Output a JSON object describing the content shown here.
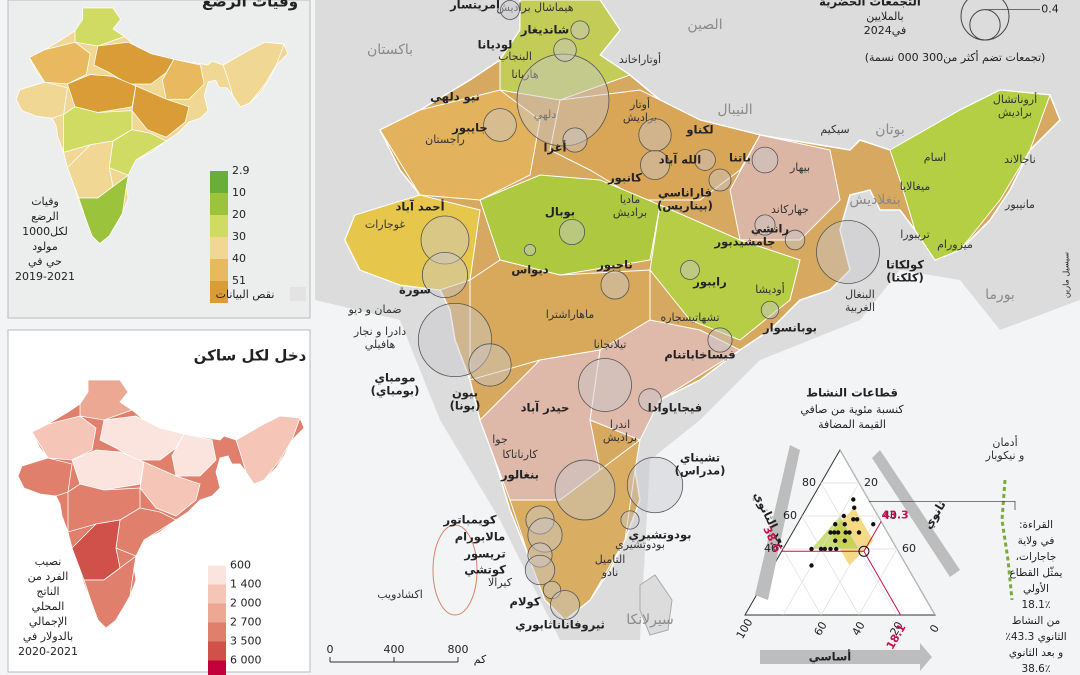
{
  "main_map": {
    "urban_legend": {
      "title": "التجمعات الحضرية",
      "subtitle": [
        "بالملايين",
        "في2024"
      ],
      "sizes": [
        1,
        0.4
      ],
      "note": "(تجمعات تضم أكثر من300 000 نسمة)"
    },
    "countries": [
      "باكستان",
      "الصين",
      "النيبال",
      "بوتان",
      "بنغلاديش",
      "بورما",
      "سيرلانكا"
    ],
    "seas": [
      [
        "أدمان",
        "و نيكوبار"
      ],
      [
        "اكشادويب"
      ]
    ],
    "states": [
      [
        "هيماشال براديش"
      ],
      [
        "البنجاب"
      ],
      [
        "هاريانا"
      ],
      [
        "أوتاراخاند"
      ],
      [
        "أوتار",
        "براديش"
      ],
      [
        "راجستان"
      ],
      [
        "بيهار"
      ],
      [
        "جهاركاند"
      ],
      [
        "البنغال",
        "الغربية"
      ],
      [
        "أوديشا"
      ],
      [
        "تشهاتيسجاره"
      ],
      [
        "ماديا",
        "براديش"
      ],
      [
        "غوجارات"
      ],
      [
        "ماهاراشترا"
      ],
      [
        "تيلانجانا"
      ],
      [
        "اندرا",
        "براديش"
      ],
      [
        "جوا"
      ],
      [
        "كارناتاكا"
      ],
      [
        "التاميل",
        "نادو"
      ],
      [
        "كيرالا"
      ],
      [
        "سيكيم"
      ],
      [
        "أروناتشال",
        "براديش"
      ],
      [
        "اسام"
      ],
      [
        "ميغالايا"
      ],
      [
        "ناجالاند"
      ],
      [
        "مانيبور"
      ],
      [
        "ميزورام"
      ],
      [
        "تريبورا"
      ],
      [
        "ضمان و ديو"
      ],
      [
        "دادرا و نجار",
        "هافيلي"
      ],
      [
        "بودوتشيري"
      ],
      [
        "دلهي"
      ]
    ],
    "cities": [
      {
        "label": [
          "نيو دلهي"
        ],
        "population": 33
      },
      {
        "label": [
          "جايبور"
        ],
        "population": 4.2
      },
      {
        "label": [
          "أغرا"
        ],
        "population": 2.3
      },
      {
        "label": [
          "لكناو"
        ],
        "population": 4.1
      },
      {
        "label": [
          "كانبور"
        ],
        "population": 3.3
      },
      {
        "label": [
          "الله آباد"
        ],
        "population": 1.7
      },
      {
        "label": [
          "فاراناسي",
          "(بيناريس)"
        ],
        "population": 1.9
      },
      {
        "label": [
          "باتنا"
        ],
        "population": 2.6
      },
      {
        "label": [
          "كولكاتا",
          "(كلكتا)"
        ],
        "population": 15.5
      },
      {
        "label": [
          "أحمد آباد"
        ],
        "population": 9
      },
      {
        "label": [
          "سورة"
        ],
        "population": 8
      },
      {
        "label": [
          "مومباي",
          "(بومباي)"
        ],
        "population": 21
      },
      {
        "label": [
          "بيون",
          "(بونا)"
        ],
        "population": 7
      },
      {
        "label": [
          "حيدر آباد"
        ],
        "population": 11
      },
      {
        "label": [
          "بنغالور"
        ],
        "population": 14
      },
      {
        "label": [
          "تشيناي",
          "(مدراس)"
        ],
        "population": 12
      },
      {
        "label": [
          "بوبال"
        ],
        "population": 2.5
      },
      {
        "label": [
          "ديواس"
        ],
        "population": 0.5
      },
      {
        "label": [
          "ناجبور"
        ],
        "population": 3.1
      },
      {
        "label": [
          "رايبور"
        ],
        "population": 1.4
      },
      {
        "label": [
          "فيساخاباتنام"
        ],
        "population": 2.3
      },
      {
        "label": [
          "فيجاياوادا"
        ],
        "population": 2
      },
      {
        "label": [
          "بوبانسوار"
        ],
        "population": 1.2
      },
      {
        "label": [
          "رانشي"
        ],
        "population": 1.6
      },
      {
        "label": [
          "جامشيدبور"
        ],
        "population": 1.5
      },
      {
        "label": [
          "لوديانا"
        ],
        "population": 2
      },
      {
        "label": [
          "شانديغار"
        ],
        "population": 1.3
      },
      {
        "label": [
          "أمريتسار"
        ],
        "population": 1.4
      },
      {
        "label": [
          "كويمباتور"
        ],
        "population": 3.1
      },
      {
        "label": [
          "مالابورام"
        ],
        "population": 4.6
      },
      {
        "label": [
          "تريسور"
        ],
        "population": 2.3
      },
      {
        "label": [
          "كوتشي"
        ],
        "population": 3.4
      },
      {
        "label": [
          "كولام"
        ],
        "population": 1.2
      },
      {
        "label": [
          "ثيروفاناناثابوري"
        ],
        "population": 3.3
      },
      {
        "label": [
          "بودوتشيري"
        ],
        "population": 1.3
      }
    ],
    "scale": {
      "ticks": [
        0,
        400,
        800
      ],
      "unit": "كم"
    },
    "credit": "سيسيل مارين"
  },
  "infant_mortality_panel": {
    "title": "وفيات الرضع",
    "caption": [
      "وفيات",
      "الرضع",
      "لكل1000",
      "مولود",
      "حي في",
      "2019-2021"
    ],
    "legend": [
      {
        "value": 2.9,
        "color": "#6aae3a"
      },
      {
        "value": 10,
        "color": "#9cc33c"
      },
      {
        "value": 20,
        "color": "#cfdb62"
      },
      {
        "value": 30,
        "color": "#f0d894"
      },
      {
        "value": 40,
        "color": "#e8b95e"
      },
      {
        "value": 51,
        "color": "#d99c36"
      }
    ],
    "no_data": "نقص البيانات"
  },
  "income_panel": {
    "title": "دخل لكل ساكن",
    "caption": [
      "نصيب",
      "الفرد من",
      "الناتج",
      "المحلي",
      "الإجمالي",
      "بالدولار في",
      "2020-2021"
    ],
    "legend": [
      {
        "value": 600,
        "color": "#fbe4dd"
      },
      {
        "value": 1400,
        "label": "1 400",
        "color": "#f5c6b8"
      },
      {
        "value": 2000,
        "label": "2 000",
        "color": "#eda893"
      },
      {
        "value": 2700,
        "label": "2 700",
        "color": "#e07f6b"
      },
      {
        "value": 3500,
        "label": "3 500",
        "color": "#d0504a"
      },
      {
        "value": 6000,
        "label": "6 000",
        "color": "#c4003a"
      }
    ]
  },
  "ternary": {
    "title": "قطاعات النشاط",
    "subtitle": [
      "كنسبة مئوية من صافي",
      "القيمة المضافة"
    ],
    "primary_axis": "أساسي",
    "secondary_axis": "ثانوي",
    "tertiary_axis": "بعد الثانوي",
    "primary_ticks": [
      0,
      20,
      40,
      60,
      100
    ],
    "secondary_ticks": [
      20,
      40,
      60
    ],
    "tertiary_ticks": [
      40,
      60,
      80
    ],
    "points": [
      [
        20,
        25,
        55
      ],
      [
        25,
        30,
        45
      ],
      [
        15,
        35,
        50
      ],
      [
        30,
        20,
        50
      ],
      [
        35,
        25,
        40
      ],
      [
        28,
        22,
        50
      ],
      [
        22,
        28,
        50
      ],
      [
        12,
        30,
        58
      ],
      [
        18,
        22,
        60
      ],
      [
        40,
        20,
        40
      ],
      [
        32,
        28,
        40
      ],
      [
        10,
        25,
        65
      ],
      [
        25,
        20,
        55
      ],
      [
        20,
        30,
        50
      ],
      [
        38,
        22,
        40
      ],
      [
        26,
        24,
        50
      ],
      [
        14,
        28,
        58
      ],
      [
        30,
        25,
        45
      ],
      [
        45,
        15,
        40
      ],
      [
        8,
        22,
        70
      ],
      [
        50,
        20,
        30
      ],
      [
        5,
        40,
        55
      ]
    ],
    "highlight": {
      "primary": 18.1,
      "secondary": 43.3,
      "tertiary": 38.6
    },
    "reading": [
      "القراءة:",
      "في ولاية",
      "جاجارات،",
      "يمثّل القطاع",
      "الأولي",
      "18.1٪",
      "من النشاط",
      "الثانوي 43.3٪",
      "و بعد الثانوي",
      "38.6٪"
    ]
  }
}
